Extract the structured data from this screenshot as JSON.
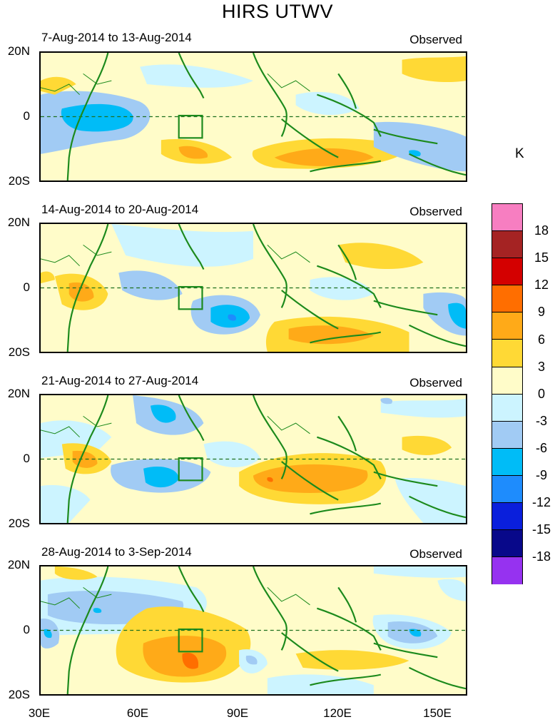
{
  "title": "HIRS UTWV",
  "unit": "K",
  "panels": [
    {
      "date_range": "7-Aug-2014 to 13-Aug-2014",
      "tag": "Observed"
    },
    {
      "date_range": "14-Aug-2014 to 20-Aug-2014",
      "tag": "Observed"
    },
    {
      "date_range": "21-Aug-2014 to 27-Aug-2014",
      "tag": "Observed"
    },
    {
      "date_range": "28-Aug-2014 to 3-Sep-2014",
      "tag": "Observed"
    }
  ],
  "lat_labels": [
    "20N",
    "0",
    "20S"
  ],
  "lon_labels": [
    "30E",
    "60E",
    "90E",
    "120E",
    "150E"
  ],
  "colorbar": {
    "labels": [
      "18",
      "15",
      "12",
      "9",
      "6",
      "3",
      "0",
      "-3",
      "-6",
      "-9",
      "-12",
      "-15",
      "-18"
    ],
    "colors": [
      "#f77ec1",
      "#a52323",
      "#d40000",
      "#ff6e00",
      "#ffaa18",
      "#ffd935",
      "#fffcc9",
      "#ccf4ff",
      "#a1cbf4",
      "#00bcf7",
      "#1e8cfd",
      "#0a1fdc",
      "#08088a",
      "#9632f0"
    ]
  }
}
